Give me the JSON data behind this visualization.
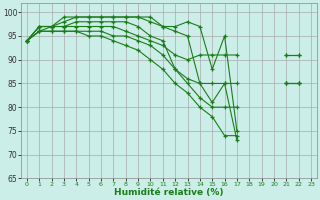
{
  "x": [
    0,
    1,
    2,
    3,
    4,
    5,
    6,
    7,
    8,
    9,
    10,
    11,
    12,
    13,
    14,
    15,
    16,
    17,
    18,
    19,
    20,
    21,
    22,
    23
  ],
  "line1": [
    94,
    97,
    97,
    99,
    99,
    99,
    99,
    99,
    99,
    99,
    98,
    97,
    97,
    98,
    97,
    88,
    95,
    75,
    null,
    null,
    null,
    91,
    91,
    null
  ],
  "line2": [
    94,
    97,
    97,
    98,
    99,
    99,
    99,
    99,
    99,
    99,
    99,
    97,
    96,
    95,
    85,
    81,
    85,
    73,
    null,
    null,
    null,
    85,
    85,
    null
  ],
  "line3": [
    94,
    97,
    97,
    97,
    98,
    98,
    98,
    98,
    98,
    97,
    95,
    94,
    88,
    86,
    85,
    85,
    85,
    85,
    null,
    null,
    null,
    85,
    85,
    null
  ],
  "line4": [
    94,
    96,
    97,
    97,
    97,
    97,
    97,
    97,
    96,
    95,
    94,
    93,
    91,
    90,
    91,
    91,
    91,
    91,
    null,
    null,
    null,
    91,
    91,
    null
  ],
  "line5": [
    94,
    96,
    96,
    96,
    96,
    96,
    96,
    95,
    95,
    94,
    93,
    91,
    88,
    85,
    82,
    80,
    80,
    80,
    null,
    null,
    null,
    85,
    85,
    null
  ],
  "line6": [
    94,
    96,
    96,
    96,
    96,
    95,
    95,
    94,
    93,
    92,
    90,
    88,
    85,
    83,
    80,
    78,
    74,
    74,
    null,
    null,
    null,
    null,
    null,
    null
  ],
  "line_color": "#1a7d1a",
  "bg_color": "#cceee8",
  "grid_color": "#aaaaaa",
  "xlabel": "Humidité relative (%)",
  "ylim": [
    65,
    102
  ],
  "xlim": [
    -0.5,
    23.5
  ],
  "yticks": [
    65,
    70,
    75,
    80,
    85,
    90,
    95,
    100
  ],
  "xticks": [
    0,
    1,
    2,
    3,
    4,
    5,
    6,
    7,
    8,
    9,
    10,
    11,
    12,
    13,
    14,
    15,
    16,
    17,
    18,
    19,
    20,
    21,
    22,
    23
  ]
}
